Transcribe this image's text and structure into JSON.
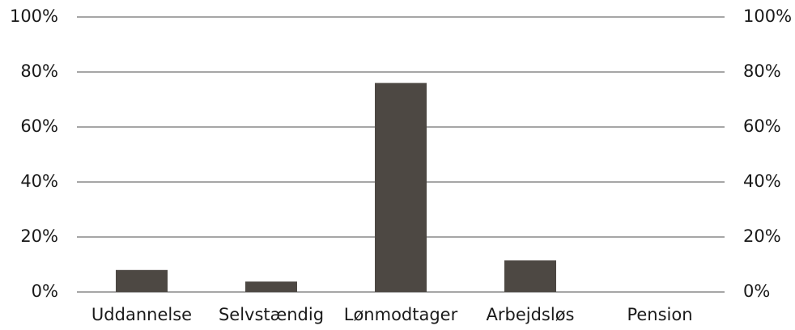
{
  "chart_data": {
    "type": "bar",
    "categories": [
      "Uddannelse",
      "Selvstændig",
      "Lønmodtager",
      "Arbejdsløs",
      "Pension"
    ],
    "values": [
      8,
      3.8,
      76,
      11.5,
      0
    ],
    "color": "#4d4843",
    "ylim": [
      0,
      100
    ],
    "yticks": [
      {
        "value": 0,
        "label": "0%"
      },
      {
        "value": 20,
        "label": "20%"
      },
      {
        "value": 40,
        "label": "40%"
      },
      {
        "value": 60,
        "label": "60%"
      },
      {
        "value": 80,
        "label": "80%"
      },
      {
        "value": 100,
        "label": "100%"
      }
    ],
    "y2lim": [
      0,
      100
    ],
    "y2ticks": [
      {
        "value": 0,
        "label": "0%"
      },
      {
        "value": 20,
        "label": "20%"
      },
      {
        "value": 40,
        "label": "40%"
      },
      {
        "value": 60,
        "label": "60%"
      },
      {
        "value": 80,
        "label": "80%"
      },
      {
        "value": 100,
        "label": "100%"
      }
    ],
    "grid": true
  }
}
